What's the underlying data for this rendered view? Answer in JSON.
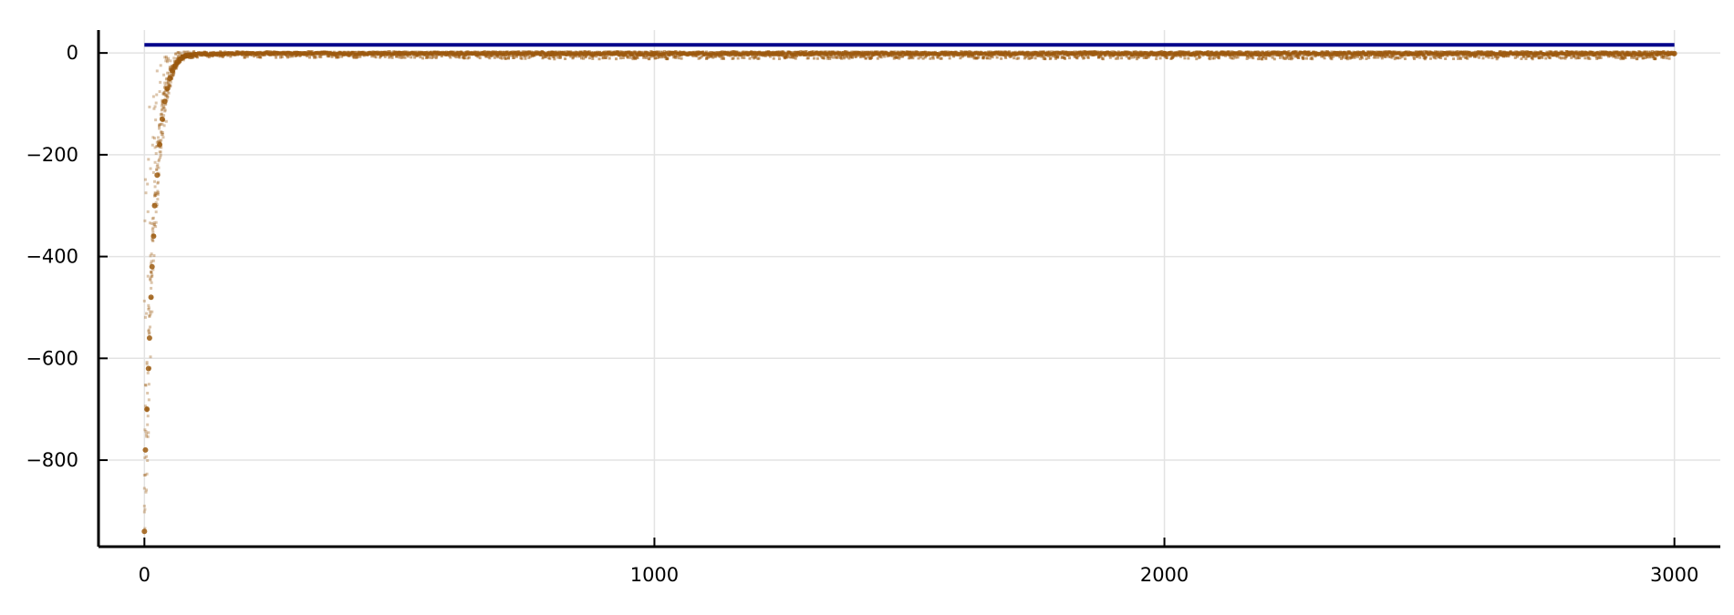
{
  "chart_data": {
    "type": "scatter",
    "title": "",
    "xlabel": "",
    "ylabel": "",
    "xlim": [
      -90,
      3090
    ],
    "ylim": [
      -970,
      45
    ],
    "grid": true,
    "legend": "none",
    "x_ticks": [
      {
        "value": 0,
        "label": "0"
      },
      {
        "value": 1000,
        "label": "1000"
      },
      {
        "value": 2000,
        "label": "2000"
      },
      {
        "value": 3000,
        "label": "3000"
      }
    ],
    "y_ticks": [
      {
        "value": 0,
        "label": "0"
      },
      {
        "value": -200,
        "label": "−200"
      },
      {
        "value": -400,
        "label": "−400"
      },
      {
        "value": -600,
        "label": "−600"
      },
      {
        "value": -800,
        "label": "−800"
      }
    ],
    "series": [
      {
        "kind": "line",
        "color": "#00008b",
        "x": [
          0,
          3000
        ],
        "y": [
          16,
          16
        ]
      },
      {
        "kind": "scatter",
        "color": "#9c5a0e",
        "x": [
          0,
          2,
          5,
          8,
          10,
          13,
          15,
          18,
          20,
          25,
          30,
          35,
          40,
          45,
          50,
          55,
          60,
          65,
          70,
          75,
          80,
          90,
          100,
          120,
          150,
          200,
          300,
          500,
          800,
          1000,
          1500,
          2000,
          2500,
          3000
        ],
        "y": [
          -940,
          -780,
          -700,
          -620,
          -560,
          -480,
          -420,
          -360,
          -300,
          -240,
          -180,
          -130,
          -95,
          -70,
          -50,
          -35,
          -25,
          -18,
          -12,
          -8,
          -6,
          -4,
          -3,
          -2,
          -2,
          -1,
          -1,
          -1,
          -1,
          -1,
          -1,
          -1,
          -1,
          -1
        ],
        "band_low": [
          -940,
          -800,
          -740,
          -680,
          -620,
          -560,
          -500,
          -440,
          -380,
          -320,
          -250,
          -190,
          -160,
          -120,
          -90,
          -60,
          -40,
          -30,
          -22,
          -16,
          -12,
          -10,
          -9,
          -8,
          -8,
          -9,
          -9,
          -10,
          -12,
          -12,
          -11,
          -12,
          -12,
          -12
        ],
        "band_high": [
          -300,
          -200,
          -150,
          -110,
          -90,
          -80,
          -70,
          -50,
          -40,
          -30,
          -20,
          -12,
          -8,
          -5,
          -3,
          -1,
          0,
          1,
          2,
          2,
          3,
          3,
          3,
          3,
          3,
          3,
          3,
          3,
          3,
          3,
          3,
          3,
          3,
          3
        ]
      }
    ]
  }
}
